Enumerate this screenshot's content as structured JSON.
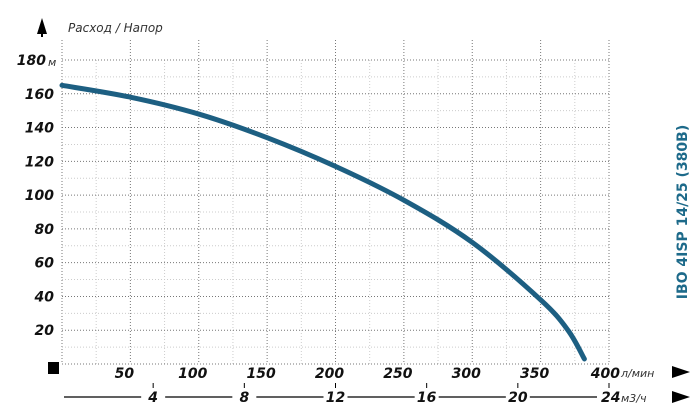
{
  "chart_data": {
    "type": "line",
    "title": "Расход / Напор",
    "model": "IBO 4ISP 14/25 (380В)",
    "xlabel": "л/мин",
    "x2label": "м3/ч",
    "ylabel": "м",
    "xlim": [
      0,
      400
    ],
    "ylim": [
      0,
      180
    ],
    "xticks": [
      50,
      100,
      150,
      200,
      250,
      300,
      350,
      400
    ],
    "x2ticks": [
      4,
      8,
      12,
      16,
      20,
      24
    ],
    "yticks": [
      20,
      40,
      60,
      80,
      100,
      120,
      140,
      160,
      180
    ],
    "grid": true,
    "series": [
      {
        "name": "IBO 4ISP 14/25 (380В)",
        "color": "#1d5f82",
        "x": [
          0,
          50,
          100,
          150,
          200,
          250,
          300,
          350,
          370,
          382
        ],
        "y": [
          165,
          158,
          148,
          134,
          117,
          97,
          72,
          38,
          20,
          3
        ]
      }
    ]
  }
}
